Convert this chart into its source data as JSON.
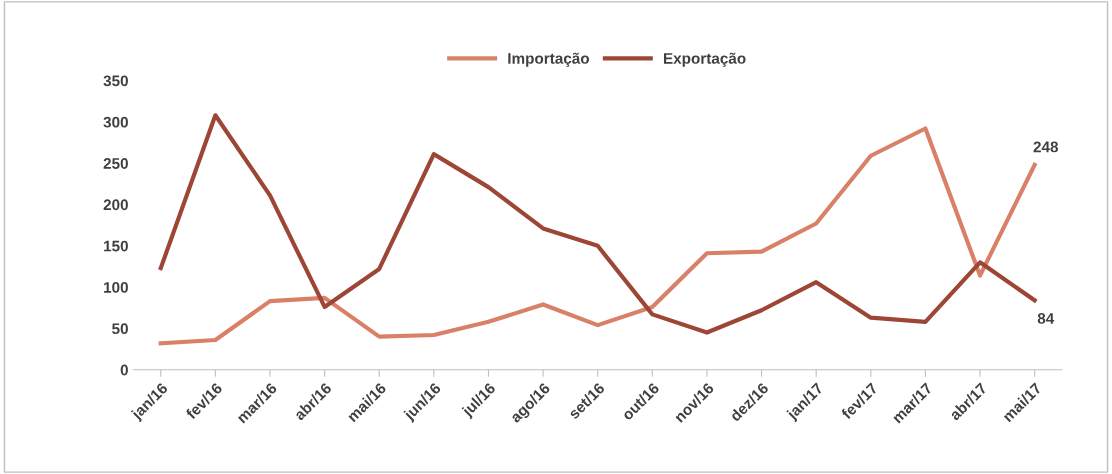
{
  "chart_data": {
    "type": "line",
    "categories": [
      "jan/16",
      "fev/16",
      "mar/16",
      "abr/16",
      "mai/16",
      "jun/16",
      "jul/16",
      "ago/16",
      "set/16",
      "out/16",
      "nov/16",
      "dez/16",
      "jan/17",
      "fev/17",
      "mar/17",
      "abr/17",
      "mai/17"
    ],
    "series": [
      {
        "name": "Importação",
        "color": "#d98068",
        "values": [
          32,
          36,
          83,
          87,
          40,
          42,
          58,
          79,
          54,
          76,
          141,
          143,
          177,
          259,
          292,
          114,
          248
        ],
        "value_labels": [
          null,
          null,
          null,
          null,
          null,
          null,
          null,
          null,
          null,
          null,
          null,
          null,
          null,
          null,
          null,
          null,
          "248"
        ]
      },
      {
        "name": "Exportação",
        "color": "#9e4636",
        "values": [
          123,
          308,
          211,
          76,
          122,
          261,
          221,
          171,
          150,
          67,
          45,
          72,
          106,
          63,
          58,
          130,
          84
        ],
        "value_labels": [
          null,
          null,
          null,
          null,
          null,
          null,
          null,
          null,
          null,
          null,
          null,
          null,
          null,
          null,
          null,
          null,
          "84"
        ]
      }
    ],
    "ylim": [
      0,
      350
    ],
    "yticks": [
      0,
      50,
      100,
      150,
      200,
      250,
      300,
      350
    ],
    "grid": false,
    "legend": "top",
    "marker": "none",
    "line_style": "solid"
  }
}
